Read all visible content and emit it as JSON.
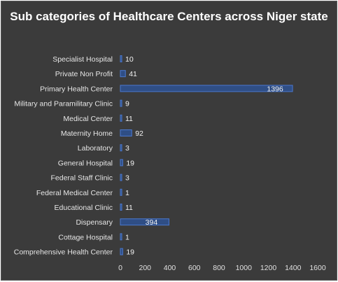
{
  "chart_data": {
    "type": "bar",
    "orientation": "horizontal",
    "title": "Sub categories of Healthcare Centers across Niger state",
    "categories": [
      "Specialist Hospital",
      "Private Non Profit",
      "Primary Health Center",
      "Military and Paramilitary Clinic",
      "Medical Center",
      "Maternity Home",
      "Laboratory",
      "General Hospital",
      "Federal Staff Clinic",
      "Federal Medical Center",
      "Educational Clinic",
      "Dispensary",
      "Cottage Hospital",
      "Comprehensive Health Center"
    ],
    "values": [
      10,
      41,
      1396,
      9,
      11,
      92,
      3,
      19,
      3,
      1,
      11,
      394,
      1,
      19
    ],
    "xlim": [
      0,
      1600
    ],
    "xticks": [
      "0",
      "200",
      "400",
      "600",
      "800",
      "1000",
      "1200",
      "1400",
      "1600"
    ],
    "grid": false,
    "legend": "none",
    "colors": {
      "background": "#3b3b3b",
      "bar_fill": "#2f4e85",
      "bar_edge": "#4a78d0",
      "text": "#e6e6e6"
    }
  }
}
